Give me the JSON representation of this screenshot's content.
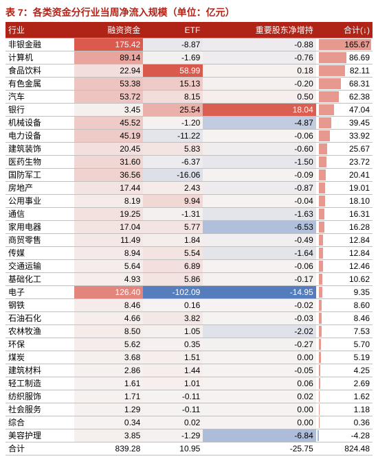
{
  "title": "表 7：各类资金分行业当周净流入规模（单位：亿元）",
  "columns": [
    "行业",
    "融资资金",
    "ETF",
    "重要股东净增持",
    "合计(↓)"
  ],
  "heat": {
    "pos_color": "#d9574a",
    "neg_color": "#4a74b8",
    "neutral_color": "#f6f2f1"
  },
  "bar": {
    "pos_color": "#e8998f",
    "neg_color": "#a7b9d8"
  },
  "col_ranges": {
    "c1": {
      "min": -5,
      "max": 180
    },
    "c2": {
      "min": -110,
      "max": 60
    },
    "c3": {
      "min": -16,
      "max": 19
    }
  },
  "bar_range": {
    "min": -10,
    "max": 170
  },
  "rows": [
    {
      "name": "非银金融",
      "c1": 175.42,
      "c2": -8.87,
      "c3": -0.88,
      "sum": 165.67
    },
    {
      "name": "计算机",
      "c1": 89.14,
      "c2": -1.69,
      "c3": -0.76,
      "sum": 86.69
    },
    {
      "name": "食品饮料",
      "c1": 22.94,
      "c2": 58.99,
      "c3": 0.18,
      "sum": 82.11
    },
    {
      "name": "有色金属",
      "c1": 53.38,
      "c2": 15.13,
      "c3": -0.2,
      "sum": 68.31
    },
    {
      "name": "汽车",
      "c1": 53.72,
      "c2": 8.15,
      "c3": 0.5,
      "sum": 62.38
    },
    {
      "name": "银行",
      "c1": 3.45,
      "c2": 25.54,
      "c3": 18.04,
      "sum": 47.04
    },
    {
      "name": "机械设备",
      "c1": 45.52,
      "c2": -1.2,
      "c3": -4.87,
      "sum": 39.45
    },
    {
      "name": "电力设备",
      "c1": 45.19,
      "c2": -11.22,
      "c3": -0.06,
      "sum": 33.92
    },
    {
      "name": "建筑装饰",
      "c1": 20.45,
      "c2": 5.83,
      "c3": -0.6,
      "sum": 25.67
    },
    {
      "name": "医药生物",
      "c1": 31.6,
      "c2": -6.37,
      "c3": -1.5,
      "sum": 23.72
    },
    {
      "name": "国防军工",
      "c1": 36.56,
      "c2": -16.06,
      "c3": -0.09,
      "sum": 20.41
    },
    {
      "name": "房地产",
      "c1": 17.44,
      "c2": 2.43,
      "c3": -0.87,
      "sum": 19.01
    },
    {
      "name": "公用事业",
      "c1": 8.19,
      "c2": 9.94,
      "c3": -0.04,
      "sum": 18.1
    },
    {
      "name": "通信",
      "c1": 19.25,
      "c2": -1.31,
      "c3": -1.63,
      "sum": 16.31
    },
    {
      "name": "家用电器",
      "c1": 17.04,
      "c2": 5.77,
      "c3": -6.53,
      "sum": 16.28
    },
    {
      "name": "商贸零售",
      "c1": 11.49,
      "c2": 1.84,
      "c3": -0.49,
      "sum": 12.84
    },
    {
      "name": "传媒",
      "c1": 8.94,
      "c2": 5.54,
      "c3": -1.64,
      "sum": 12.84
    },
    {
      "name": "交通运输",
      "c1": 5.64,
      "c2": 6.89,
      "c3": -0.06,
      "sum": 12.46
    },
    {
      "name": "基础化工",
      "c1": 4.93,
      "c2": 5.86,
      "c3": -0.17,
      "sum": 10.62
    },
    {
      "name": "电子",
      "c1": 126.4,
      "c2": -102.09,
      "c3": -14.95,
      "sum": 9.35
    },
    {
      "name": "钢铁",
      "c1": 8.46,
      "c2": 0.16,
      "c3": -0.02,
      "sum": 8.6
    },
    {
      "name": "石油石化",
      "c1": 4.66,
      "c2": 3.82,
      "c3": -0.03,
      "sum": 8.46
    },
    {
      "name": "农林牧渔",
      "c1": 8.5,
      "c2": 1.05,
      "c3": -2.02,
      "sum": 7.53
    },
    {
      "name": "环保",
      "c1": 5.62,
      "c2": 0.35,
      "c3": -0.27,
      "sum": 5.7
    },
    {
      "name": "煤炭",
      "c1": 3.68,
      "c2": 1.51,
      "c3": 0.0,
      "sum": 5.19
    },
    {
      "name": "建筑材料",
      "c1": 2.86,
      "c2": 1.44,
      "c3": -0.05,
      "sum": 4.25
    },
    {
      "name": "轻工制造",
      "c1": 1.61,
      "c2": 1.01,
      "c3": 0.06,
      "sum": 2.69
    },
    {
      "name": "纺织服饰",
      "c1": 1.71,
      "c2": -0.11,
      "c3": 0.02,
      "sum": 1.62
    },
    {
      "name": "社会服务",
      "c1": 1.29,
      "c2": -0.11,
      "c3": 0.0,
      "sum": 1.18
    },
    {
      "name": "综合",
      "c1": 0.34,
      "c2": 0.02,
      "c3": 0.0,
      "sum": 0.36
    },
    {
      "name": "美容护理",
      "c1": 3.85,
      "c2": -1.29,
      "c3": -6.84,
      "sum": -4.28
    }
  ],
  "total": {
    "name": "合计",
    "c1": 839.28,
    "c2": 10.95,
    "c3": -25.75,
    "sum": 824.48
  }
}
